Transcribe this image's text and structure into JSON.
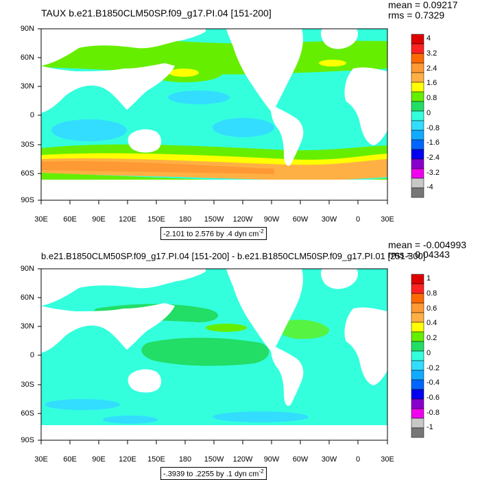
{
  "panels": [
    {
      "title": "TAUX b.e21.B1850CLM50SP.f09_g17.PI.04 [151-200]",
      "mean_label": "mean = 0.09217",
      "rms_label": "rms = 0.7329",
      "range_label": "-2.101 to 2.576 by .4 dyn cm",
      "range_sup": "-2",
      "colorbar": {
        "labels": [
          "4",
          "3.2",
          "2.4",
          "1.6",
          "0.8",
          "0",
          "-0.8",
          "-1.6",
          "-2.4",
          "-3.2",
          "-4"
        ],
        "colors": [
          "#dd0000",
          "#ff2222",
          "#ff6a00",
          "#ff9933",
          "#ffb044",
          "#ffff00",
          "#66ee00",
          "#22dd66",
          "#33ffdd",
          "#33ddff",
          "#11aaff",
          "#0066ff",
          "#0000ee",
          "#8800cc",
          "#ee00ee",
          "#c8c8c8",
          "#777777"
        ]
      }
    },
    {
      "title": "b.e21.B1850CLM50SP.f09_g17.PI.04 [151-200] - b.e21.B1850CLM50SP.f09_g17.PI.01 [251-300]",
      "mean_label": "mean = -0.004993",
      "rms_label": "rms = 0.04343",
      "range_label": "-.3939 to .2255 by .1 dyn cm",
      "range_sup": "-2",
      "colorbar": {
        "labels": [
          "1",
          "0.8",
          "0.6",
          "0.4",
          "0.2",
          "0",
          "-0.2",
          "-0.4",
          "-0.6",
          "-0.8",
          "-1"
        ],
        "colors": [
          "#dd0000",
          "#ff2222",
          "#ff6a00",
          "#ff9933",
          "#ffb044",
          "#ffff00",
          "#66ee00",
          "#22dd66",
          "#33ffdd",
          "#33ddff",
          "#11aaff",
          "#0066ff",
          "#0000ee",
          "#8800cc",
          "#ee00ee",
          "#c8c8c8",
          "#777777"
        ]
      }
    }
  ],
  "lat_labels": [
    "90N",
    "60N",
    "30N",
    "0",
    "30S",
    "60S",
    "90S"
  ],
  "lon_labels": [
    "30E",
    "60E",
    "90E",
    "120E",
    "150E",
    "180",
    "150W",
    "120W",
    "90W",
    "60W",
    "30W",
    "0",
    "30E"
  ]
}
